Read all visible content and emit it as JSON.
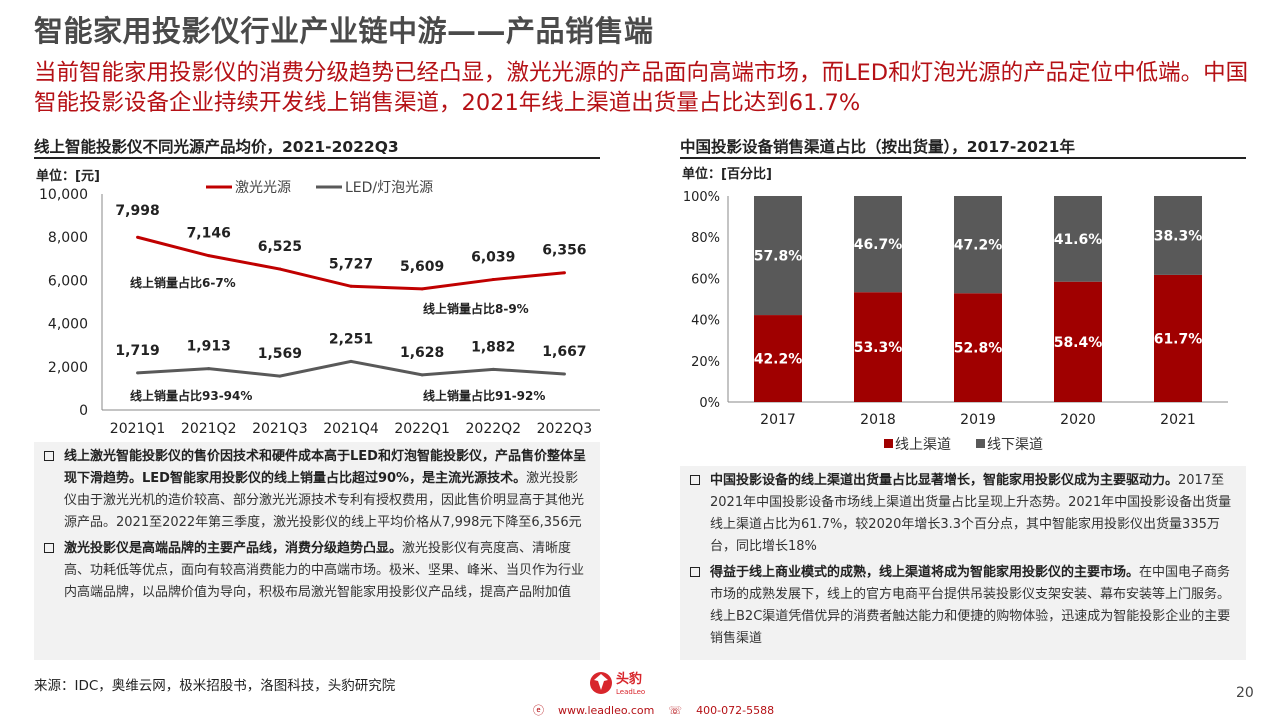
{
  "header": {
    "title": "智能家用投影仪行业产业链中游——产品销售端",
    "subtitle": "当前智能家用投影仪的消费分级趋势已经凸显，激光光源的产品面向高端市场，而LED和灯泡光源的产品定位中低端。中国智能投影设备企业持续开发线上销售渠道，2021年线上渠道出货量占比达到61.7%"
  },
  "left_panel": {
    "title": "线上智能投影仪不同光源产品均价，2021-2022Q3",
    "unit": "单位：[元]",
    "bullets": [
      {
        "bold": "线上激光智能投影仪的售价因技术和硬件成本高于LED和灯泡智能投影仪，产品售价整体呈现下滑趋势。LED智能家用投影仪的线上销量占比超过90%，是主流光源技术。",
        "text": "激光投影仪由于激光光机的造价较高、部分激光光源技术专利有授权费用，因此售价明显高于其他光源产品。2021至2022年第三季度，激光投影仪的线上平均价格从7,998元下降至6,356元"
      },
      {
        "bold": "激光投影仪是高端品牌的主要产品线，消费分级趋势凸显。",
        "text": "激光投影仪有亮度高、清晰度高、功耗低等优点，面向有较高消费能力的中高端市场。极米、坚果、峰米、当贝作为行业内高端品牌，以品牌价值为导向，积极布局激光智能家用投影仪产品线，提高产品附加值"
      }
    ]
  },
  "right_panel": {
    "title": "中国投影设备销售渠道占比（按出货量），2017-2021年",
    "unit": "单位：[百分比]",
    "bullets": [
      {
        "bold": "中国投影设备的线上渠道出货量占比显著增长，智能家用投影仪成为主要驱动力。",
        "text": "2017至2021年中国投影设备市场线上渠道出货量占比呈现上升态势。2021年中国投影设备出货量线上渠道占比为61.7%，较2020年增长3.3个百分点，其中智能家用投影仪出货量335万台，同比增长18%"
      },
      {
        "bold": "得益于线上商业模式的成熟，线上渠道将成为智能家用投影仪的主要市场。",
        "text": "在中国电子商务市场的成熟发展下，线上的官方电商平台提供吊装投影仪支架安装、幕布安装等上门服务。线上B2C渠道凭借优异的消费者触达能力和便捷的购物体验，迅速成为智能投影企业的主要销售渠道"
      }
    ]
  },
  "chart_data": [
    {
      "type": "line",
      "categories": [
        "2021Q1",
        "2021Q2",
        "2021Q3",
        "2021Q4",
        "2022Q1",
        "2022Q2",
        "2022Q3"
      ],
      "series": [
        {
          "name": "激光光源",
          "color": "#c00000",
          "values": [
            7998,
            7146,
            6525,
            5727,
            5609,
            6039,
            6356
          ],
          "labels": [
            "7,998",
            "7,146",
            "6,525",
            "5,727",
            "5,609",
            "6,039",
            "6,356"
          ]
        },
        {
          "name": "LED/灯泡光源",
          "color": "#595959",
          "values": [
            1719,
            1913,
            1569,
            2251,
            1628,
            1882,
            1667
          ],
          "labels": [
            "1,719",
            "1,913",
            "1,569",
            "2,251",
            "1,628",
            "1,882",
            "1,667"
          ]
        }
      ],
      "ylim": [
        0,
        10000
      ],
      "yticks": [
        "0",
        "2,000",
        "4,000",
        "6,000",
        "8,000",
        "10,000"
      ],
      "annotations": [
        "线上销量占比6-7%",
        "线上销量占比8-9%",
        "线上销量占比93-94%",
        "线上销量占比91-92%"
      ]
    },
    {
      "type": "bar",
      "stacked": true,
      "categories": [
        "2017",
        "2018",
        "2019",
        "2020",
        "2021"
      ],
      "series": [
        {
          "name": "线上渠道",
          "color": "#a00000",
          "values": [
            42.2,
            53.3,
            52.8,
            58.4,
            61.7
          ],
          "labels": [
            "42.2%",
            "53.3%",
            "52.8%",
            "58.4%",
            "61.7%"
          ]
        },
        {
          "name": "线下渠道",
          "color": "#595959",
          "values": [
            57.8,
            46.7,
            47.2,
            41.6,
            38.3
          ],
          "labels": [
            "57.8%",
            "46.7%",
            "47.2%",
            "41.6%",
            "38.3%"
          ]
        }
      ],
      "ylim": [
        0,
        100
      ],
      "yticks": [
        "0%",
        "20%",
        "40%",
        "60%",
        "80%",
        "100%"
      ]
    }
  ],
  "footer": {
    "source": "来源：IDC，奥维云网，极米招股书，洛图科技，头豹研究院",
    "page": "20",
    "logo_text": "头豹",
    "logo_sub": "LeadLeo",
    "website": "www.leadleo.com",
    "phone": "400-072-5588"
  }
}
